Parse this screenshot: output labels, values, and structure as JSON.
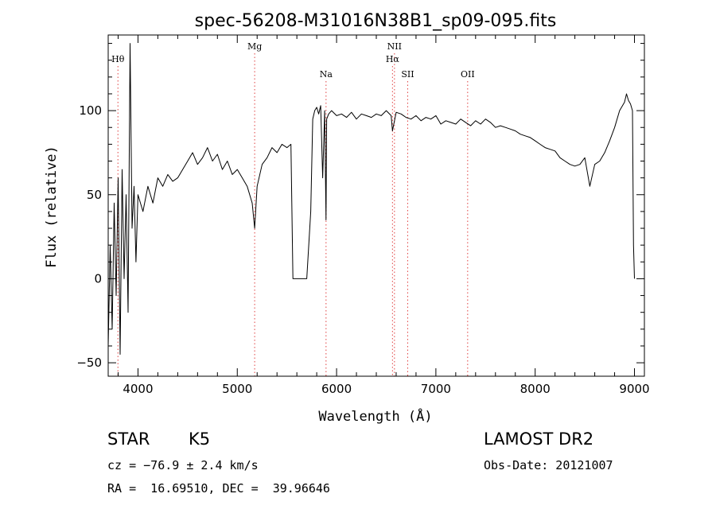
{
  "chart_data": {
    "type": "line",
    "title": "spec-56208-M31016N38B1_sp09-095.fits",
    "xlabel": "Wavelength (Å)",
    "ylabel": "Flux (relative)",
    "xlim": [
      3700,
      9100
    ],
    "ylim": [
      -58,
      145
    ],
    "x_ticks": [
      4000,
      5000,
      6000,
      7000,
      8000,
      9000
    ],
    "y_ticks": [
      -50,
      0,
      50,
      100
    ],
    "x_minor_step": 200,
    "y_minor_step": 10,
    "grid": false,
    "colors": {
      "spectrum": "#000000",
      "lines": "#e04040",
      "axes": "#000000"
    },
    "spectral_lines": [
      {
        "label": "Hθ",
        "wavelength": 3798,
        "row": 1
      },
      {
        "label": "Mg",
        "wavelength": 5175,
        "row": 0
      },
      {
        "label": "Na",
        "wavelength": 5894,
        "row": 2
      },
      {
        "label": "NII",
        "wavelength": 6583,
        "row": 0
      },
      {
        "label": "Hα",
        "wavelength": 6563,
        "row": 1
      },
      {
        "label": "SII",
        "wavelength": 6716,
        "row": 2
      },
      {
        "label": "OII",
        "wavelength": 7320,
        "row": 2
      }
    ],
    "series": [
      {
        "x": [
          3700,
          3720,
          3740,
          3760,
          3780,
          3800,
          3820,
          3840,
          3860,
          3880,
          3900,
          3920,
          3940,
          3960,
          3980,
          4000,
          4050,
          4100,
          4150,
          4200,
          4250,
          4300,
          4350,
          4400,
          4450,
          4500,
          4550,
          4600,
          4650,
          4700,
          4750,
          4800,
          4850,
          4900,
          4950,
          5000,
          5050,
          5100,
          5150,
          5175,
          5200,
          5250,
          5300,
          5350,
          5400,
          5450,
          5500,
          5540,
          5560,
          5600,
          5700,
          5720,
          5740,
          5760,
          5780,
          5800,
          5820,
          5840,
          5860,
          5880,
          5894,
          5900,
          5920,
          5950,
          6000,
          6050,
          6100,
          6150,
          6200,
          6250,
          6300,
          6350,
          6400,
          6450,
          6500,
          6550,
          6563,
          6600,
          6650,
          6700,
          6750,
          6800,
          6850,
          6900,
          6950,
          7000,
          7050,
          7100,
          7150,
          7200,
          7250,
          7300,
          7350,
          7400,
          7450,
          7500,
          7550,
          7600,
          7650,
          7700,
          7750,
          7800,
          7850,
          7900,
          7950,
          8000,
          8050,
          8100,
          8150,
          8200,
          8250,
          8300,
          8350,
          8400,
          8450,
          8500,
          8550,
          8600,
          8650,
          8700,
          8750,
          8800,
          8850,
          8900,
          8920,
          8940,
          8960,
          8980,
          8990,
          9000
        ],
        "values": [
          -40,
          20,
          -30,
          45,
          -10,
          60,
          -45,
          65,
          0,
          50,
          -20,
          140,
          30,
          55,
          10,
          50,
          40,
          55,
          45,
          60,
          55,
          62,
          58,
          60,
          65,
          70,
          75,
          68,
          72,
          78,
          70,
          74,
          65,
          70,
          62,
          65,
          60,
          55,
          45,
          30,
          55,
          68,
          72,
          78,
          75,
          80,
          78,
          80,
          0,
          0,
          0,
          20,
          40,
          95,
          100,
          102,
          98,
          103,
          60,
          100,
          35,
          95,
          98,
          100,
          97,
          98,
          96,
          99,
          95,
          98,
          97,
          96,
          98,
          97,
          100,
          97,
          88,
          99,
          98,
          96,
          95,
          97,
          94,
          96,
          95,
          97,
          92,
          94,
          93,
          92,
          95,
          93,
          91,
          94,
          92,
          95,
          93,
          90,
          91,
          90,
          89,
          88,
          86,
          85,
          84,
          82,
          80,
          78,
          77,
          76,
          72,
          70,
          68,
          67,
          68,
          72,
          55,
          68,
          70,
          75,
          82,
          90,
          100,
          105,
          110,
          106,
          104,
          100,
          20,
          0
        ]
      }
    ]
  },
  "info": {
    "object_class": "STAR",
    "subclass": "K5",
    "survey": "LAMOST DR2",
    "redshift": "cz = −76.9 ± 2.4 km/s",
    "obs_date": "Obs-Date: 20121007",
    "coords": "RA =  16.69510, DEC =  39.96646"
  }
}
